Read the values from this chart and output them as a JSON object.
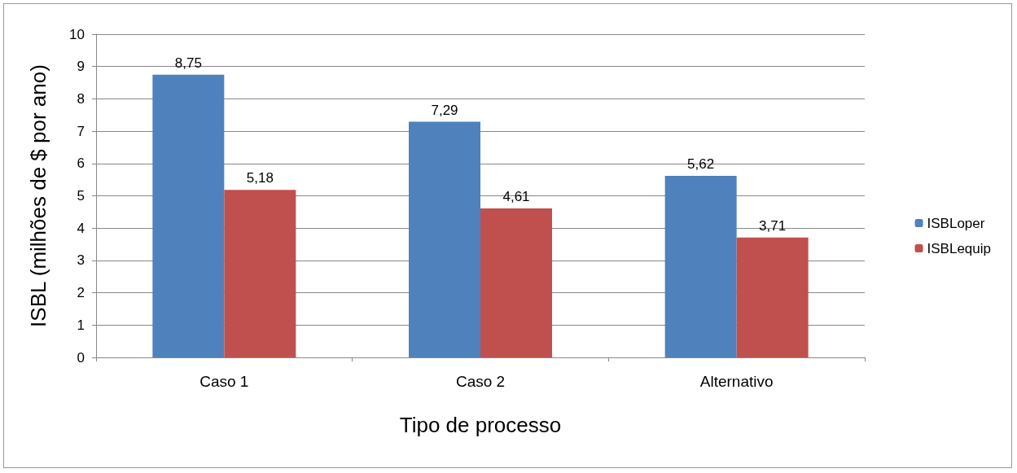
{
  "chart_data": {
    "type": "bar",
    "xlabel": "Tipo de processo",
    "ylabel": "ISBL (milhões de $ por ano)",
    "categories": [
      "Caso 1",
      "Caso 2",
      "Alternativo"
    ],
    "series": [
      {
        "name": "ISBLoper",
        "color": "#4f81bd",
        "values": [
          8.75,
          7.29,
          5.62
        ],
        "value_labels": [
          "8,75",
          "7,29",
          "5,62"
        ]
      },
      {
        "name": "ISBLequip",
        "color": "#c0504d",
        "values": [
          5.18,
          4.61,
          3.71
        ],
        "value_labels": [
          "5,18",
          "4,61",
          "3,71"
        ]
      }
    ],
    "ylim": [
      0,
      10
    ],
    "yticks": [
      0,
      1,
      2,
      3,
      4,
      5,
      6,
      7,
      8,
      9,
      10
    ],
    "grid": "y",
    "legend": "right"
  }
}
